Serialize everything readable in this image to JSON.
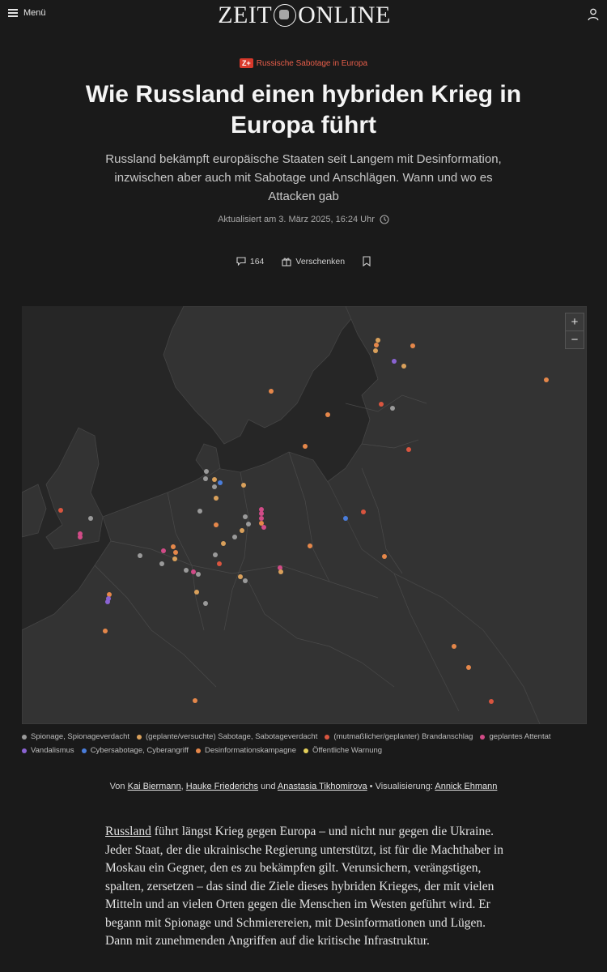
{
  "header": {
    "menu_label": "Menü",
    "logo_left": "ZEIT",
    "logo_right": "ONLINE"
  },
  "article": {
    "kicker_badge": "Z+",
    "kicker": "Russische Sabotage in Europa",
    "title": "Wie Russland einen hybriden Krieg in Europa führt",
    "lead": "Russland bekämpft europäische Staaten seit Langem mit Desinformation, inzwischen aber auch mit Sabotage und Anschlägen. Wann und wo es Attacken gab",
    "date": "Aktualisiert am 3. März 2025, 16:24 Uhr",
    "comments_count": "164",
    "gift_label": "Verschenken"
  },
  "map": {
    "zoom_in": "+",
    "zoom_out": "−",
    "legend": [
      {
        "label": "Spionage, Spionageverdacht",
        "color": "#9a9a9a"
      },
      {
        "label": "(geplante/versuchte) Sabotage, Sabotageverdacht",
        "color": "#d9a05b"
      },
      {
        "label": "(mutmaßlicher/geplanter) Brandanschlag",
        "color": "#d9553f"
      },
      {
        "label": "geplantes Attentat",
        "color": "#d14b87"
      },
      {
        "label": "Vandalismus",
        "color": "#8a63d2"
      },
      {
        "label": "Cybersabotage, Cyberangriff",
        "color": "#4a7ddb"
      },
      {
        "label": "Desinformationskampagne",
        "color": "#e5874a"
      },
      {
        "label": "Öffentliche Warnung",
        "color": "#e3cf5a"
      }
    ]
  },
  "byline": {
    "prefix": "Von",
    "author1": "Kai Biermann",
    "sep1": ",",
    "author2": "Hauke Friederichs",
    "and": "und",
    "author3": "Anastasia Tikhomirova",
    "vis_prefix": "• Visualisierung:",
    "vis_author": "Annick Ehmann"
  },
  "body": {
    "link": "Russland",
    "text": "führt längst Krieg gegen Europa – und nicht nur gegen die Ukraine. Jeder Staat, der die ukrainische Regierung unterstützt, ist für die Machthaber in Moskau ein Gegner, den es zu bekämpfen gilt. Verunsichern, verängstigen, spalten, zersetzen – das sind die Ziele dieses hybriden Krieges, der mit vielen Mitteln und an vielen Orten gegen die Menschen im Westen geführt wird. Er begann mit Spionage und Schmierereien, mit Desinformationen und Lügen. Dann mit zunehmenden Angriffen auf die kritische Infrastruktur."
  }
}
